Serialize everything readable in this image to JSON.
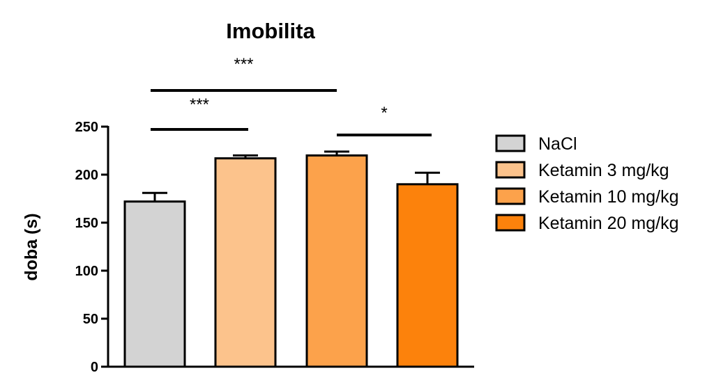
{
  "chart_data": {
    "type": "bar",
    "title": "Imobilita",
    "xlabel": "",
    "ylabel": "doba (s)",
    "ylim": [
      0,
      250
    ],
    "yticks": [
      0,
      50,
      100,
      150,
      200,
      250
    ],
    "categories": [
      "NaCl",
      "Ketamin 3 mg/kg",
      "Ketamin 10 mg/kg",
      "Ketamin 20 mg/kg"
    ],
    "values": [
      172,
      217,
      220,
      190
    ],
    "errors": [
      9,
      3,
      4,
      12
    ],
    "colors": [
      "#d3d3d3",
      "#fcc38c",
      "#fca24b",
      "#fc820c"
    ],
    "legend": {
      "placement": "right",
      "entries": [
        "NaCl",
        "Ketamin 3 mg/kg",
        "Ketamin 10 mg/kg",
        "Ketamin 20 mg/kg"
      ]
    },
    "significance": [
      {
        "from": 0,
        "to": 1,
        "label": "***"
      },
      {
        "from": 0,
        "to": 2,
        "label": "***"
      },
      {
        "from": 2,
        "to": 3,
        "label": "*"
      }
    ]
  }
}
